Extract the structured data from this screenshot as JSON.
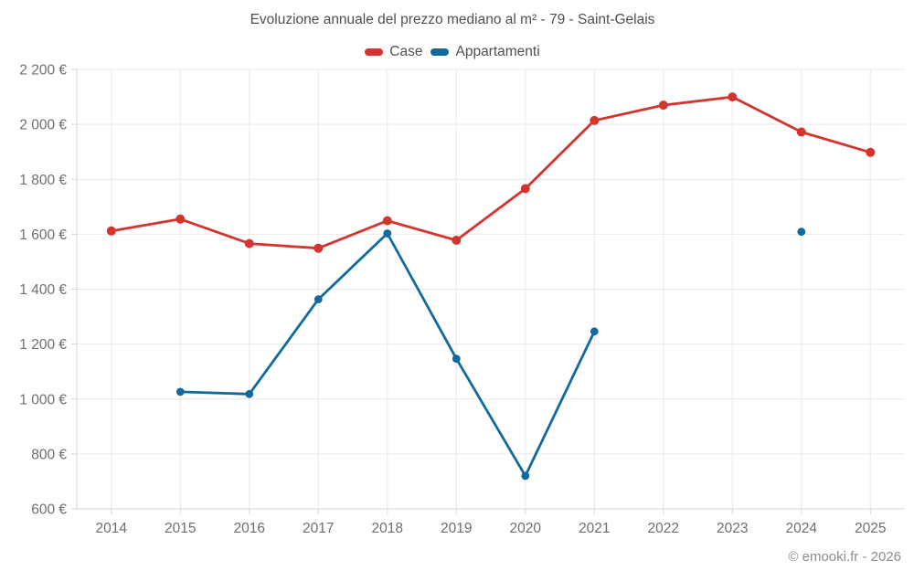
{
  "footer": "© emooki.fr - 2026",
  "colors": {
    "background": "#ffffff",
    "heading": "#4f4f4f",
    "axis_label": "#6e6e6e",
    "grid": "#e9e9e9",
    "axis": "#d5d5d5",
    "footer_text": "#8d8d8d",
    "case_red": "#d4342e",
    "appartamenti_blue": "#106a9e"
  },
  "chart_data": {
    "type": "line",
    "title": "Evoluzione annuale del prezzo mediano al m² - 79 - Saint-Gelais",
    "categories": [
      "2014",
      "2015",
      "2016",
      "2017",
      "2018",
      "2019",
      "2020",
      "2021",
      "2022",
      "2023",
      "2024",
      "2025"
    ],
    "series": [
      {
        "name": "Case",
        "color": "#d4342e",
        "values": [
          1612,
          1655,
          1566,
          1549,
          1649,
          1578,
          1766,
          2014,
          2070,
          2100,
          1972,
          1898
        ]
      },
      {
        "name": "Appartamenti",
        "color": "#106a9e",
        "values": [
          null,
          1026,
          1018,
          1363,
          1603,
          1147,
          720,
          1246,
          null,
          null,
          1609,
          null
        ]
      }
    ],
    "xlabel": "",
    "ylabel": "",
    "ylim": [
      600,
      2200
    ],
    "ytick_step": 200,
    "ytick_labels": [
      "600 €",
      "800 €",
      "1 000 €",
      "1 200 €",
      "1 400 €",
      "1 600 €",
      "1 800 €",
      "2 000 €",
      "2 200 €"
    ],
    "currency": "€",
    "grid": true,
    "legend_position": "top-center",
    "marker_style": "filled-circle"
  }
}
